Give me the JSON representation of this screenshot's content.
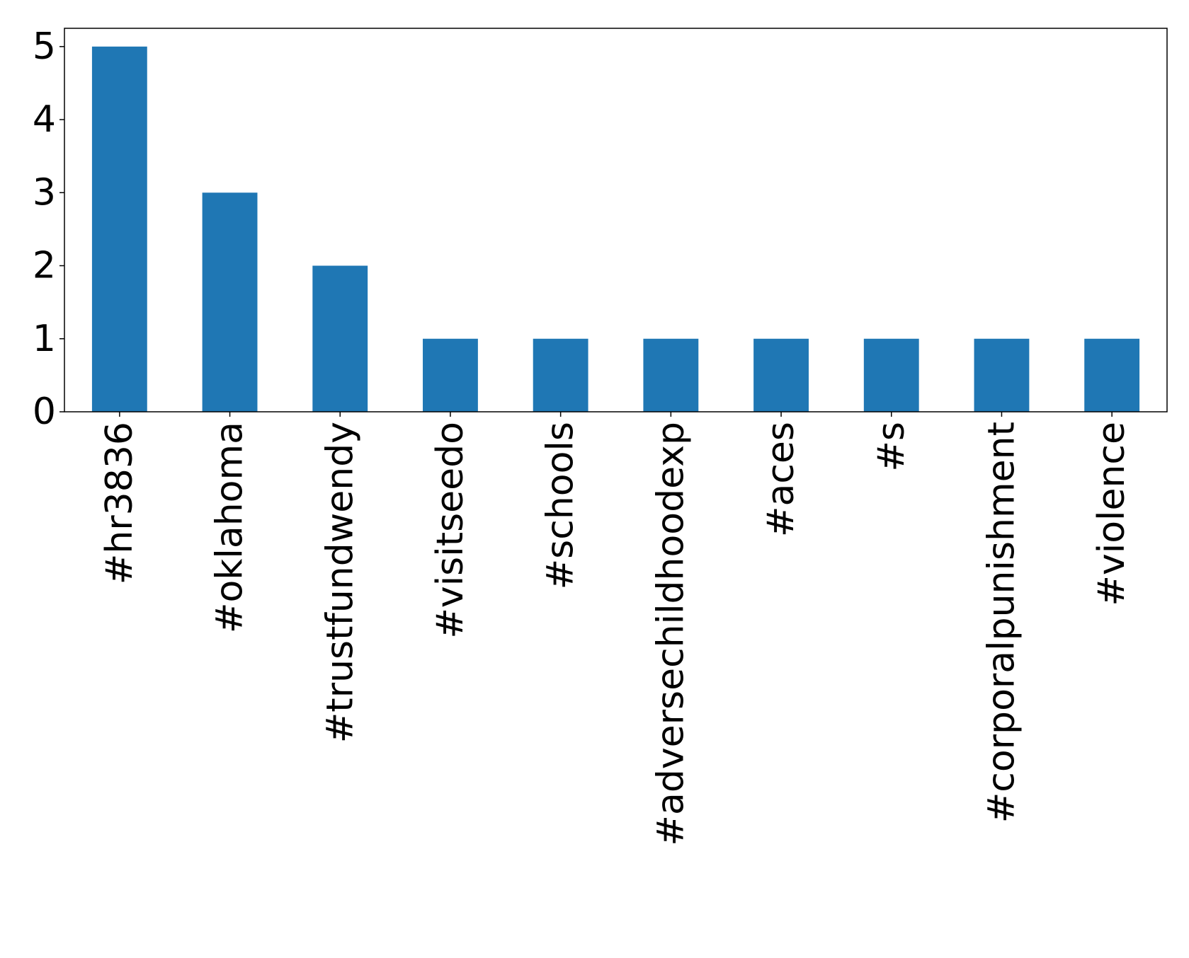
{
  "chart_data": {
    "type": "bar",
    "title": "",
    "xlabel": "",
    "ylabel": "",
    "categories": [
      "#hr3836",
      "#oklahoma",
      "#trustfundwendy",
      "#visitseedo",
      "#schools",
      "#adversechildhoodexp",
      "#aces",
      "#s",
      "#corporalpunishment",
      "#violence"
    ],
    "values": [
      5,
      3,
      2,
      1,
      1,
      1,
      1,
      1,
      1,
      1
    ],
    "ylim": [
      0,
      5.25
    ],
    "yticks": [
      0,
      1,
      2,
      3,
      4,
      5
    ],
    "grid": false,
    "legend": false,
    "colors": {
      "bar": "#1f77b4",
      "axis": "#000000",
      "background": "#ffffff"
    }
  }
}
